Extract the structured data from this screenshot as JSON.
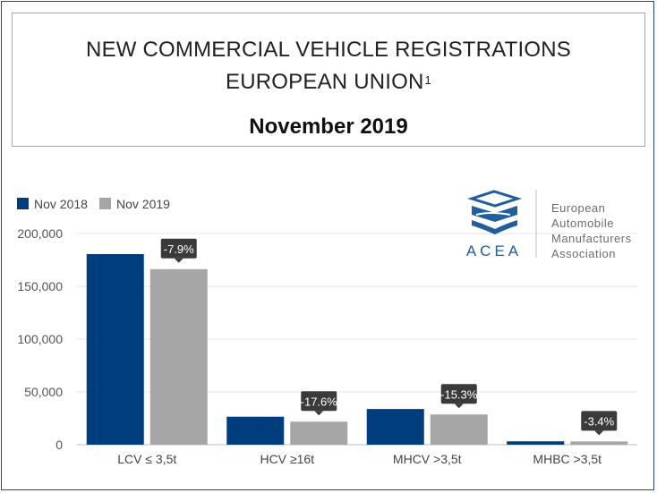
{
  "header": {
    "title_line1": "NEW COMMERCIAL VEHICLE REGISTRATIONS",
    "title_line2": "EUROPEAN UNION",
    "title_sup": "1",
    "subtitle": "November 2019"
  },
  "logo": {
    "acronym": "ACEA",
    "line1": "European",
    "line2": "Automobile",
    "line3": "Manufacturers",
    "line4": "Association"
  },
  "colors": {
    "nov2018": "#003d7c",
    "nov2019": "#a6a6a6",
    "label_bg": "#3a3a3a",
    "grid": "#e3e3e3",
    "logo_blue": "#1f5f9e"
  },
  "chart_data": {
    "type": "bar",
    "categories": [
      "LCV ≤ 3,5t",
      "HCV ≥16t",
      "MHCV >3,5t",
      "MHBC >3,5t"
    ],
    "series": [
      {
        "name": "Nov 2018",
        "values": [
          180500,
          26500,
          33800,
          3200
        ]
      },
      {
        "name": "Nov 2019",
        "values": [
          166300,
          21800,
          28600,
          3100
        ]
      }
    ],
    "change_labels": [
      "-7.9%",
      "-17.6%",
      "-15.3%",
      "-3.4%"
    ],
    "yticks": [
      0,
      50000,
      100000,
      150000,
      200000
    ],
    "ytick_labels": [
      "0",
      "50,000",
      "100,000",
      "150,000",
      "200,000"
    ],
    "ylim": [
      0,
      200000
    ],
    "legend": "top-left",
    "grid": true
  }
}
